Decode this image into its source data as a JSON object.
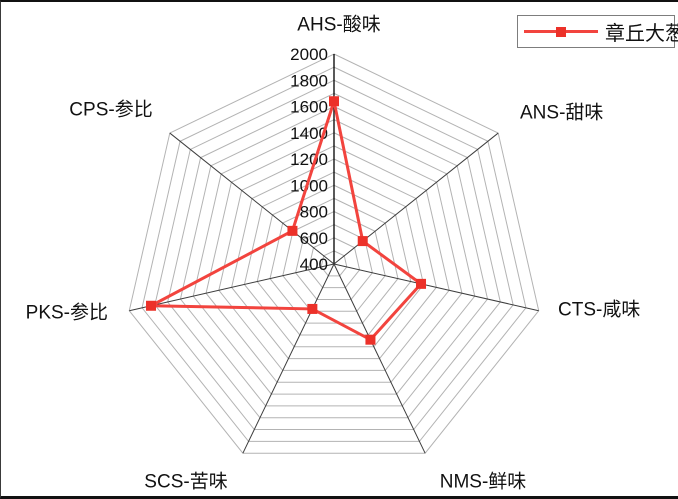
{
  "legend": {
    "series_label": "章丘大葱",
    "position": "top-right"
  },
  "chart_data": {
    "type": "radar",
    "title": "",
    "categories": [
      {
        "id": "AHS",
        "label": "AHS-酸味"
      },
      {
        "id": "ANS",
        "label": "ANS-甜味"
      },
      {
        "id": "CTS",
        "label": "CTS-咸味"
      },
      {
        "id": "NMS",
        "label": "NMS-鲜味"
      },
      {
        "id": "SCS",
        "label": "SCS-苦味"
      },
      {
        "id": "PKS",
        "label": "PKS-参比"
      },
      {
        "id": "CPS",
        "label": "CPS-参比"
      }
    ],
    "series": [
      {
        "name": "章丘大葱",
        "values": [
          1640,
          680,
          1080,
          1040,
          780,
          1830,
          805
        ]
      }
    ],
    "axis_range": [
      400,
      2000
    ],
    "ticks": [
      400,
      600,
      800,
      1000,
      1200,
      1400,
      1600,
      1800,
      2000
    ],
    "grid_step": 100,
    "grid_on": true,
    "legend_position": "top-right",
    "colors": {
      "series_line": "#f2443e",
      "series_marker": "#ec3129",
      "grid_ring": "#b3b3b3",
      "spoke": "#3d3d3d",
      "value_axis": "#000000",
      "tick_text": "#111111"
    }
  }
}
